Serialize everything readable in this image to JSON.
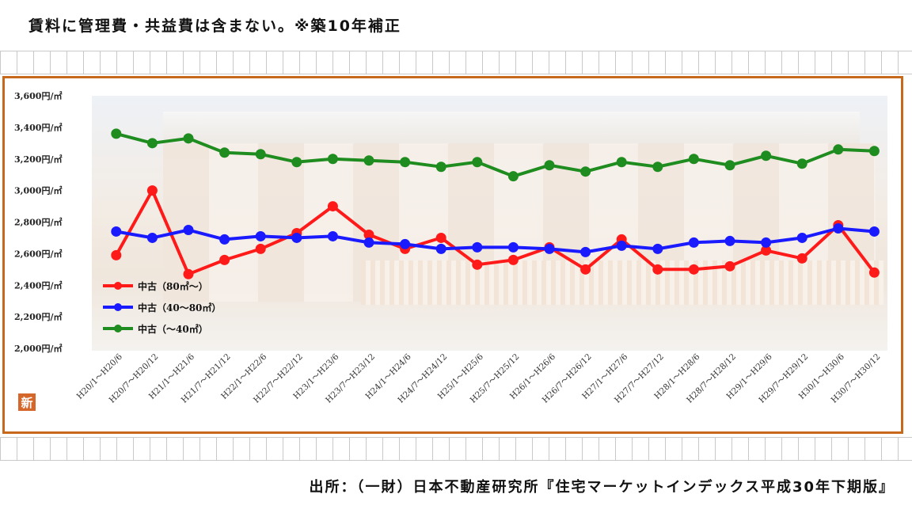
{
  "note": "賃料に管理費・共益費は含まない。※築10年補正",
  "logo_text": "新",
  "source": "出所：（一財）日本不動産研究所『住宅マーケットインデックス平成30年下期版』",
  "colors": {
    "frame": "#c8681a",
    "series_red": "#ff1a1a",
    "series_blue": "#1a1aff",
    "series_green": "#1f8c1f"
  },
  "chart_data": {
    "type": "line",
    "title": "",
    "xlabel": "",
    "ylabel": "",
    "ylim": [
      2000,
      3600
    ],
    "y_ticks": [
      "2,000円/㎡",
      "2,200円/㎡",
      "2,400円/㎡",
      "2,600円/㎡",
      "2,800円/㎡",
      "3,000円/㎡",
      "3,200円/㎡",
      "3,400円/㎡",
      "3,600円/㎡"
    ],
    "grid": false,
    "legend_position": "lower-left",
    "categories": [
      "H20/1～H20/6",
      "H20/7～H20/12",
      "H21/1～H21/6",
      "H21/7～H21/12",
      "H22/1～H22/6",
      "H22/7～H22/12",
      "H23/1～H23/6",
      "H23/7～H23/12",
      "H24/1～H24/6",
      "H24/7～H24/12",
      "H25/1～H25/6",
      "H25/7～H25/12",
      "H26/1～H26/6",
      "H26/7～H26/12",
      "H27/1～H27/6",
      "H27/7～H27/12",
      "H28/1～H28/6",
      "H28/7～H28/12",
      "H29/1～H29/6",
      "H29/7～H29/12",
      "H30/1～H30/6",
      "H30/7～H30/12"
    ],
    "series": [
      {
        "name": "中古（80㎡～）",
        "color": "#ff1a1a",
        "values": [
          2590,
          3000,
          2470,
          2560,
          2630,
          2730,
          2900,
          2720,
          2630,
          2700,
          2530,
          2560,
          2640,
          2500,
          2690,
          2500,
          2500,
          2520,
          2620,
          2570,
          2780,
          2480
        ]
      },
      {
        "name": "中古（40～80㎡）",
        "color": "#1a1aff",
        "values": [
          2740,
          2700,
          2750,
          2690,
          2710,
          2700,
          2710,
          2670,
          2660,
          2630,
          2640,
          2640,
          2630,
          2610,
          2650,
          2630,
          2670,
          2680,
          2670,
          2700,
          2760,
          2740
        ]
      },
      {
        "name": "中古（～40㎡）",
        "color": "#1f8c1f",
        "values": [
          3360,
          3300,
          3330,
          3240,
          3230,
          3180,
          3200,
          3190,
          3180,
          3150,
          3180,
          3090,
          3160,
          3120,
          3180,
          3150,
          3200,
          3160,
          3220,
          3170,
          3260,
          3250
        ]
      }
    ]
  }
}
